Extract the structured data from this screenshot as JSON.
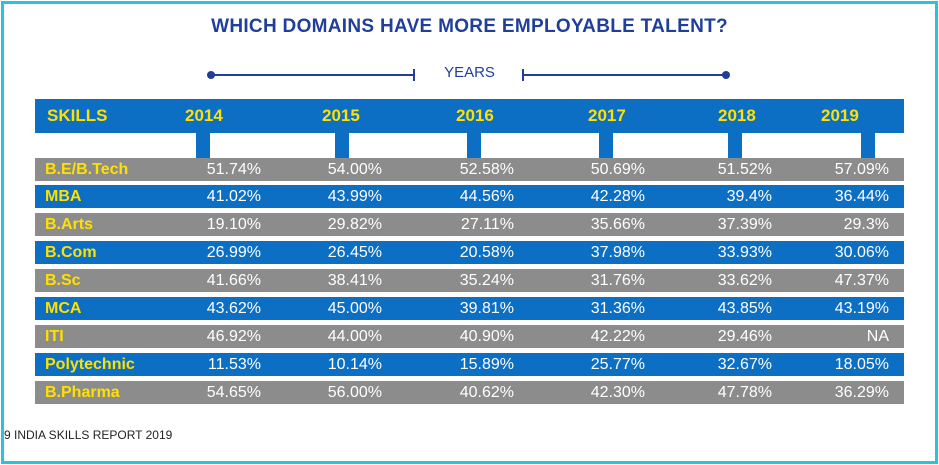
{
  "chart_data": {
    "type": "table",
    "title": "WHICH DOMAINS HAVE MORE EMPLOYABLE TALENT?",
    "subtitle": "YEARS",
    "row_header": "SKILLS",
    "columns": [
      "2014",
      "2015",
      "2016",
      "2017",
      "2018",
      "2019"
    ],
    "rows": [
      {
        "skill": "B.E/B.Tech",
        "values": [
          "51.74%",
          "54.00%",
          "52.58%",
          "50.69%",
          "51.52%",
          "57.09%"
        ]
      },
      {
        "skill": "MBA",
        "values": [
          "41.02%",
          "43.99%",
          "44.56%",
          "42.28%",
          "39.4%",
          "36.44%"
        ]
      },
      {
        "skill": "B.Arts",
        "values": [
          "19.10%",
          "29.82%",
          "27.11%",
          "35.66%",
          "37.39%",
          "29.3%"
        ]
      },
      {
        "skill": "B.Com",
        "values": [
          "26.99%",
          "26.45%",
          "20.58%",
          "37.98%",
          "33.93%",
          "30.06%"
        ]
      },
      {
        "skill": "B.Sc",
        "values": [
          "41.66%",
          "38.41%",
          "35.24%",
          "31.76%",
          "33.62%",
          "47.37%"
        ]
      },
      {
        "skill": "MCA",
        "values": [
          "43.62%",
          "45.00%",
          "39.81%",
          "31.36%",
          "43.85%",
          "43.19%"
        ]
      },
      {
        "skill": "ITI",
        "values": [
          "46.92%",
          "44.00%",
          "40.90%",
          "42.22%",
          "29.46%",
          "NA"
        ]
      },
      {
        "skill": "Polytechnic",
        "values": [
          "11.53%",
          "10.14%",
          "15.89%",
          "25.77%",
          "32.67%",
          "18.05%"
        ]
      },
      {
        "skill": "B.Pharma",
        "values": [
          "54.65%",
          "56.00%",
          "40.62%",
          "42.30%",
          "47.78%",
          "36.29%"
        ]
      }
    ]
  },
  "footer": "9 INDIA SKILLS REPORT 2019",
  "colors": {
    "title": "#1f3f9a",
    "header_bg": "#0c6fc3",
    "header_text": "#ffe000",
    "row_gray": "#8c8c8c",
    "row_blue": "#0c6fc3",
    "frame": "#2bc3d9"
  }
}
